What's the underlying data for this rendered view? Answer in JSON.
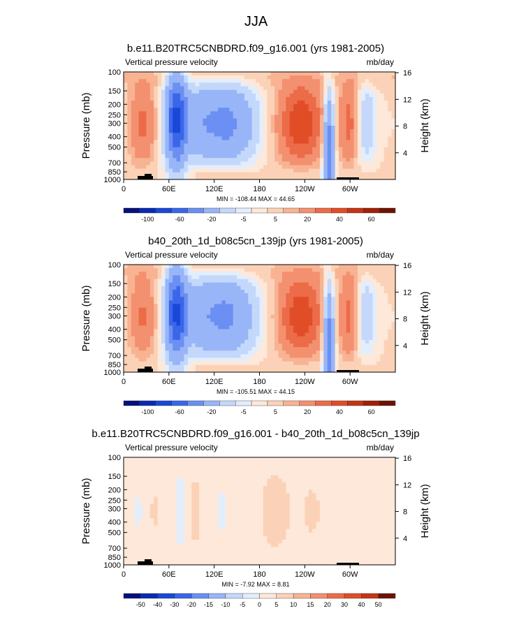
{
  "page_title": "JJA",
  "chart_data": [
    {
      "type": "heatmap",
      "title": "b.e11.B20TRC5CNBDRD.f09_g16.001 (yrs 1981-2005)",
      "left_label": "Vertical pressure velocity",
      "right_label": "mb/day",
      "ylabel": "Pressure (mb)",
      "ylabel_right": "Height (km)",
      "yticks": [
        "100",
        "150",
        "200",
        "250",
        "300",
        "400",
        "500",
        "700",
        "850",
        "1000"
      ],
      "yticks_right": [
        "16",
        "12",
        "8",
        "4"
      ],
      "xticks": [
        "0",
        "60E",
        "120E",
        "180",
        "120W",
        "60W"
      ],
      "stats": "MIN = -108.44   MAX =  44.65",
      "colorbar_labels": [
        "-100",
        "-60",
        "-20",
        "-5",
        "5",
        "20",
        "40",
        "60"
      ],
      "colorbar_colors": [
        "#05107a",
        "#0a2ab4",
        "#1948d8",
        "#3a66ea",
        "#6b8ff2",
        "#98b5f8",
        "#c3d8fb",
        "#e3eefd",
        "#fde8d9",
        "#fbd2b7",
        "#f8b393",
        "#f39070",
        "#ec6b48",
        "#e04d27",
        "#c43515",
        "#a12008",
        "#6e1204"
      ]
    },
    {
      "type": "heatmap",
      "title": "b40_20th_1d_b08c5cn_139jp (yrs 1981-2005)",
      "left_label": "Vertical pressure velocity",
      "right_label": "mb/day",
      "ylabel": "Pressure (mb)",
      "ylabel_right": "Height (km)",
      "yticks": [
        "100",
        "150",
        "200",
        "250",
        "300",
        "400",
        "500",
        "700",
        "850",
        "1000"
      ],
      "yticks_right": [
        "16",
        "12",
        "8",
        "4"
      ],
      "xticks": [
        "0",
        "60E",
        "120E",
        "180",
        "120W",
        "60W"
      ],
      "stats": "MIN = -105.51   MAX =  44.15",
      "colorbar_labels": [
        "-100",
        "-60",
        "-20",
        "-5",
        "5",
        "20",
        "40",
        "60"
      ],
      "colorbar_colors": [
        "#05107a",
        "#0a2ab4",
        "#1948d8",
        "#3a66ea",
        "#6b8ff2",
        "#98b5f8",
        "#c3d8fb",
        "#e3eefd",
        "#fde8d9",
        "#fbd2b7",
        "#f8b393",
        "#f39070",
        "#ec6b48",
        "#e04d27",
        "#c43515",
        "#a12008",
        "#6e1204"
      ]
    },
    {
      "type": "heatmap",
      "title": "b.e11.B20TRC5CNBDRD.f09_g16.001 - b40_20th_1d_b08c5cn_139jp",
      "left_label": "Vertical pressure velocity",
      "right_label": "mb/day",
      "ylabel": "Pressure (mb)",
      "ylabel_right": "Height (km)",
      "yticks": [
        "100",
        "150",
        "200",
        "250",
        "300",
        "400",
        "500",
        "700",
        "850",
        "1000"
      ],
      "yticks_right": [
        "16",
        "12",
        "8",
        "4"
      ],
      "xticks": [
        "0",
        "60E",
        "120E",
        "180",
        "120W",
        "60W"
      ],
      "stats": "MIN =  -7.92   MAX =   8.81",
      "colorbar_labels": [
        "-50",
        "-40",
        "-30",
        "-20",
        "-15",
        "-10",
        "-5",
        "0",
        "5",
        "10",
        "15",
        "20",
        "30",
        "40",
        "50"
      ],
      "colorbar_colors": [
        "#05107a",
        "#0a2ab4",
        "#1948d8",
        "#3a66ea",
        "#6b8ff2",
        "#98b5f8",
        "#c3d8fb",
        "#e3eefd",
        "#fde8d9",
        "#fbd2b7",
        "#f8b393",
        "#f39070",
        "#ec6b48",
        "#e04d27",
        "#c43515",
        "#6e1204"
      ]
    }
  ]
}
